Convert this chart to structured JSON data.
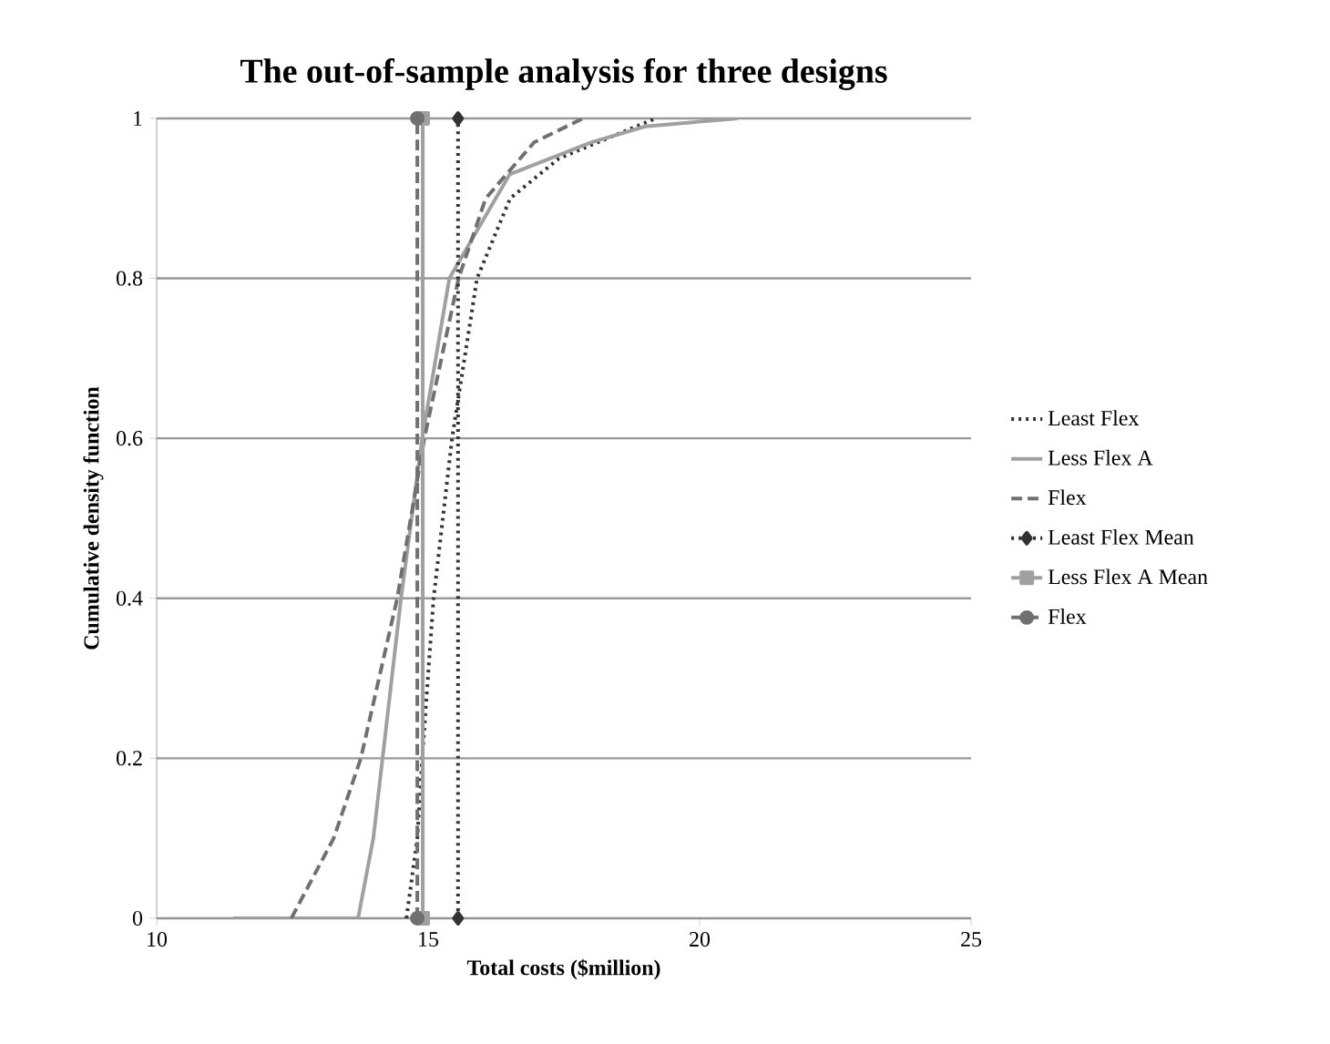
{
  "chart_data": {
    "type": "line",
    "title": "The out-of-sample analysis for three designs",
    "xlabel": "Total costs ($million)",
    "ylabel": "Cumulative density function",
    "xlim": [
      10,
      25
    ],
    "xticks": [
      10,
      15,
      20,
      25
    ],
    "ylim": [
      0,
      1
    ],
    "yticks": [
      0,
      0.2,
      0.4,
      0.6,
      0.8,
      1
    ],
    "grid": "y",
    "legend": "right",
    "series": [
      {
        "name": "Least Flex",
        "color": "#333333",
        "line_style": "dotted",
        "marker": "none",
        "x": [
          14.6,
          14.8,
          14.89,
          15.1,
          15.44,
          15.9,
          16.51,
          17.41,
          19.19
        ],
        "values": [
          0,
          0.1,
          0.2,
          0.4,
          0.6,
          0.8,
          0.9,
          0.95,
          1
        ]
      },
      {
        "name": "Less Flex A",
        "color": "#a0a0a0",
        "line_style": "solid",
        "marker": "none",
        "x": [
          11.41,
          13.71,
          13.99,
          14.16,
          14.5,
          14.89,
          15.39,
          16.5,
          18.0,
          19.0,
          20.7
        ],
        "values": [
          0,
          0,
          0.1,
          0.2,
          0.4,
          0.6,
          0.8,
          0.93,
          0.97,
          0.99,
          1
        ]
      },
      {
        "name": "Flex",
        "color": "#707070",
        "line_style": "dashed",
        "marker": "none",
        "x": [
          12.48,
          13.26,
          13.76,
          14.43,
          14.93,
          15.56,
          16.06,
          16.95,
          17.85
        ],
        "values": [
          0,
          0.1,
          0.2,
          0.4,
          0.6,
          0.8,
          0.9,
          0.97,
          1
        ]
      },
      {
        "name": "Least Flex Mean",
        "color": "#333333",
        "line_style": "dotted",
        "marker": "diamond",
        "x": [
          15.55,
          15.55
        ],
        "values": [
          0,
          1
        ]
      },
      {
        "name": "Less Flex A Mean",
        "color": "#a0a0a0",
        "line_style": "solid",
        "marker": "square",
        "x": [
          14.9,
          14.9
        ],
        "values": [
          0,
          1
        ]
      },
      {
        "name": "Flex",
        "color": "#707070",
        "line_style": "dashed",
        "marker": "circle",
        "x": [
          14.8,
          14.8
        ],
        "values": [
          0,
          1
        ]
      }
    ]
  }
}
